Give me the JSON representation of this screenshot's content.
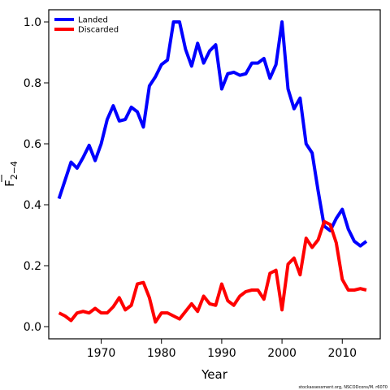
{
  "chart_data": {
    "type": "line",
    "xlabel": "Year",
    "ylabel_main": "F",
    "ylabel_sub": "2−4",
    "xlim": [
      1961.3,
      2016.3
    ],
    "ylim": [
      -0.04,
      1.04
    ],
    "x_ticks": [
      1970,
      1980,
      1990,
      2000,
      2010
    ],
    "x_tick_labels": [
      "1970",
      "1980",
      "1990",
      "2000",
      "2010"
    ],
    "y_ticks": [
      0.0,
      0.2,
      0.4,
      0.6,
      0.8,
      1.0
    ],
    "y_tick_labels": [
      "0.0",
      "0.2",
      "0.4",
      "0.6",
      "0.8",
      "1.0"
    ],
    "legend_position": "top-left",
    "grid": false,
    "x": [
      1963,
      1964,
      1965,
      1966,
      1967,
      1968,
      1969,
      1970,
      1971,
      1972,
      1973,
      1974,
      1975,
      1976,
      1977,
      1978,
      1979,
      1980,
      1981,
      1982,
      1983,
      1984,
      1985,
      1986,
      1987,
      1988,
      1989,
      1990,
      1991,
      1992,
      1993,
      1994,
      1995,
      1996,
      1997,
      1998,
      1999,
      2000,
      2001,
      2002,
      2003,
      2004,
      2005,
      2006,
      2007,
      2008,
      2009,
      2010,
      2011,
      2012,
      2013,
      2014
    ],
    "series": [
      {
        "name": "Landed",
        "color": "#0000ff",
        "values": [
          0.42,
          0.48,
          0.54,
          0.52,
          0.555,
          0.595,
          0.545,
          0.6,
          0.68,
          0.725,
          0.675,
          0.68,
          0.72,
          0.705,
          0.655,
          0.79,
          0.82,
          0.86,
          0.875,
          1.0,
          1.0,
          0.91,
          0.855,
          0.93,
          0.865,
          0.905,
          0.925,
          0.78,
          0.83,
          0.835,
          0.825,
          0.83,
          0.865,
          0.865,
          0.88,
          0.815,
          0.86,
          1.0,
          0.78,
          0.715,
          0.75,
          0.6,
          0.57,
          0.445,
          0.33,
          0.315,
          0.355,
          0.385,
          0.32,
          0.28,
          0.265,
          0.28
        ]
      },
      {
        "name": "Discarded",
        "color": "#ff0000",
        "values": [
          0.045,
          0.035,
          0.02,
          0.045,
          0.05,
          0.045,
          0.06,
          0.045,
          0.045,
          0.065,
          0.095,
          0.055,
          0.07,
          0.14,
          0.145,
          0.095,
          0.015,
          0.045,
          0.045,
          0.035,
          0.025,
          0.05,
          0.075,
          0.05,
          0.1,
          0.075,
          0.07,
          0.14,
          0.085,
          0.07,
          0.1,
          0.115,
          0.12,
          0.12,
          0.09,
          0.175,
          0.185,
          0.055,
          0.205,
          0.225,
          0.17,
          0.29,
          0.26,
          0.285,
          0.345,
          0.335,
          0.275,
          0.155,
          0.12,
          0.12,
          0.125,
          0.12
        ]
      }
    ]
  },
  "footer": {
    "source": "stockassessment.org, NSCODcons/M. r6070"
  }
}
